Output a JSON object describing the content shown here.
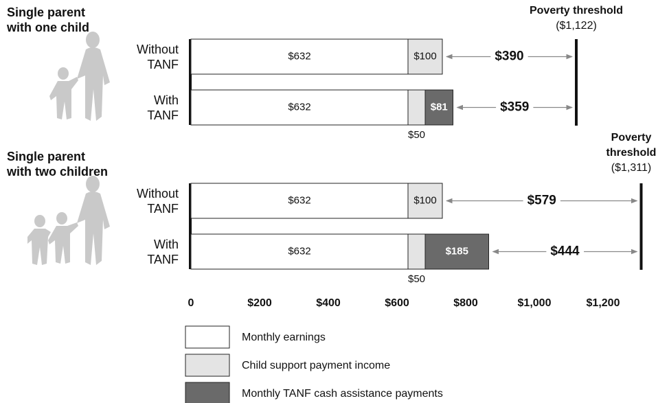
{
  "chart_data": {
    "type": "stacked-barh",
    "xlim": [
      0,
      1350
    ],
    "xticks": [
      0,
      {
        "value": 200,
        "label": "$200"
      },
      {
        "value": 400,
        "label": "$400"
      },
      {
        "value": 600,
        "label": "$600"
      },
      {
        "value": 800,
        "label": "$800"
      },
      {
        "value": 1000,
        "label": "$1,000"
      },
      {
        "value": 1200,
        "label": "$1,200"
      }
    ],
    "series": [
      {
        "name": "Monthly earnings",
        "color": "#ffffff"
      },
      {
        "name": "Child support payment income",
        "color": "#e4e4e4"
      },
      {
        "name": "Monthly TANF cash assistance payments",
        "color": "#6a6a6a"
      }
    ],
    "groups": [
      {
        "title": "Single parent with one child",
        "threshold": {
          "label": "Poverty threshold",
          "value": 1122,
          "value_label": "($1,122)"
        },
        "categories": [
          "Without TANF",
          "With TANF"
        ],
        "values": [
          [
            632,
            100,
            null
          ],
          [
            632,
            50,
            81
          ]
        ],
        "value_labels": [
          [
            "$632",
            "$100",
            null
          ],
          [
            "$632",
            "$50",
            "$81"
          ]
        ],
        "gaps": [
          390,
          359
        ],
        "gap_labels": [
          "$390",
          "$359"
        ]
      },
      {
        "title": "Single parent with two children",
        "threshold": {
          "label": "Poverty threshold",
          "value": 1311,
          "value_label": "($1,311)"
        },
        "categories": [
          "Without TANF",
          "With TANF"
        ],
        "values": [
          [
            632,
            100,
            null
          ],
          [
            632,
            50,
            185
          ]
        ],
        "value_labels": [
          [
            "$632",
            "$100",
            null
          ],
          [
            "$632",
            "$50",
            "$185"
          ]
        ],
        "gaps": [
          579,
          444
        ],
        "gap_labels": [
          "$579",
          "$444"
        ]
      }
    ]
  }
}
